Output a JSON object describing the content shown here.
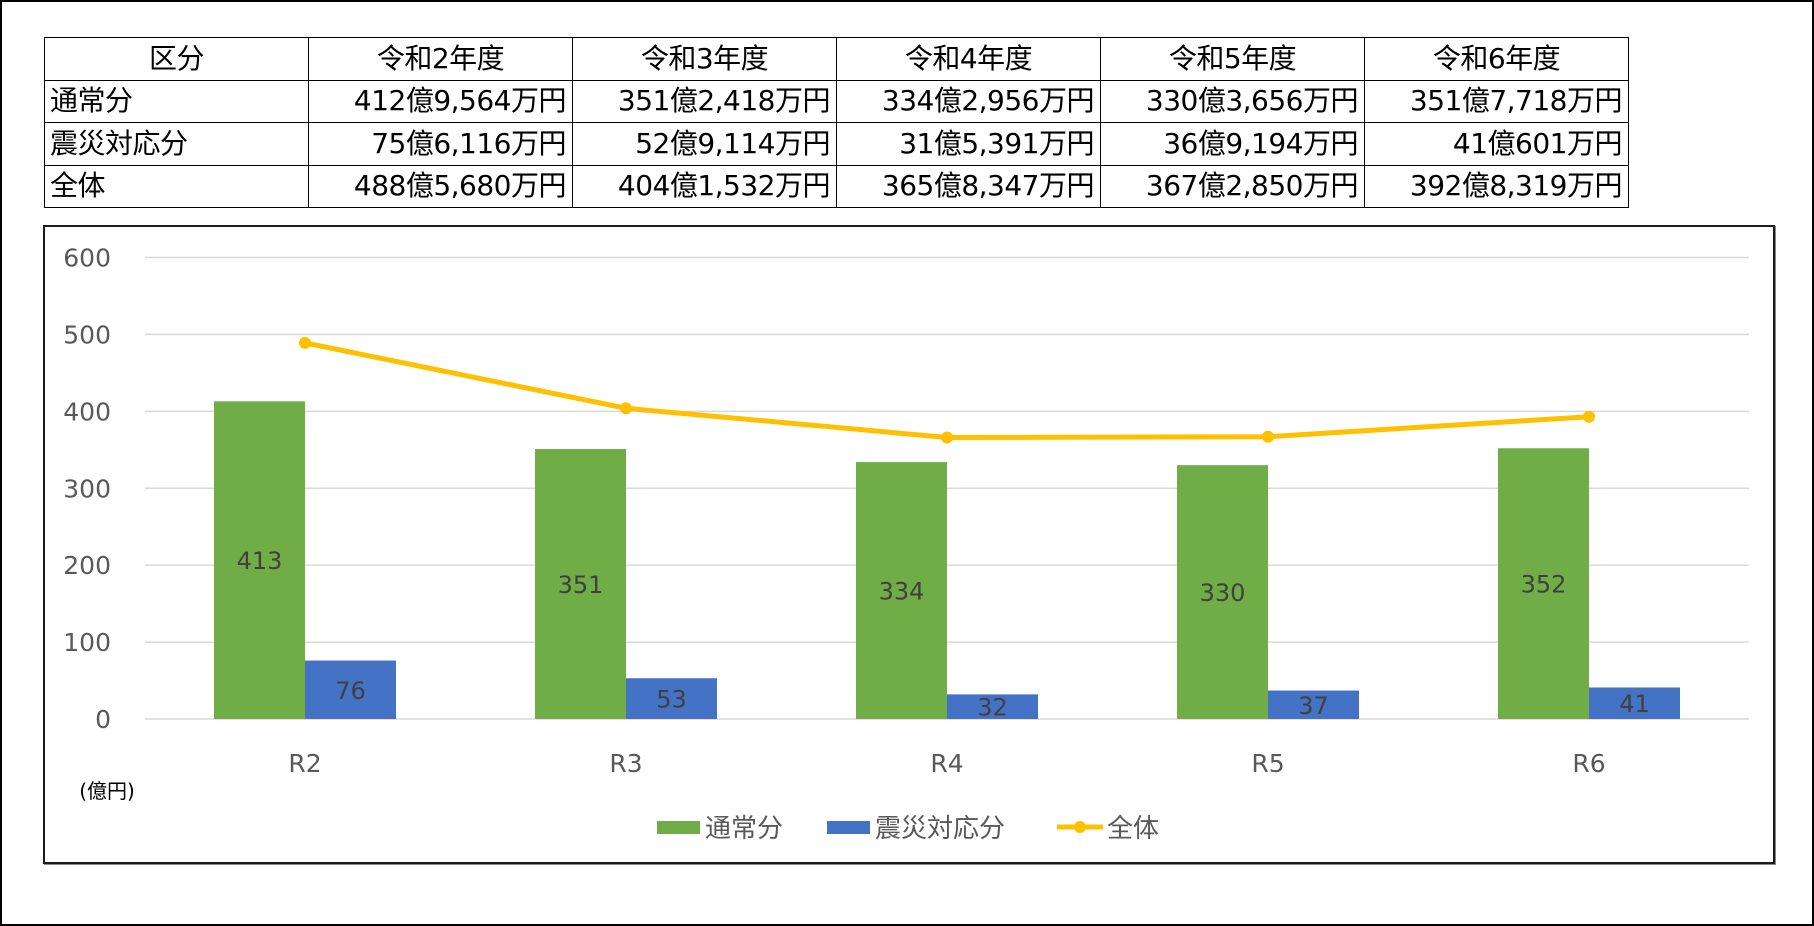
{
  "table": {
    "header": [
      "区分",
      "令和2年度",
      "令和3年度",
      "令和4年度",
      "令和5年度",
      "令和6年度"
    ],
    "rows": [
      {
        "label": "通常分",
        "values": [
          "412億9,564万円",
          "351億2,418万円",
          "334億2,956万円",
          "330億3,656万円",
          "351億7,718万円"
        ]
      },
      {
        "label": "震災対応分",
        "values": [
          "75億6,116万円",
          "52億9,114万円",
          "31億5,391万円",
          "36億9,194万円",
          "41億601万円"
        ]
      },
      {
        "label": "全体",
        "values": [
          "488億5,680万円",
          "404億1,532万円",
          "365億8,347万円",
          "367億2,850万円",
          "392億8,319万円"
        ]
      }
    ]
  },
  "chart_data": {
    "type": "bar",
    "title": "",
    "xlabel": "",
    "ylabel": "(億円)",
    "unit_label": "(億円)",
    "categories": [
      "R2",
      "R3",
      "R4",
      "R5",
      "R6"
    ],
    "series": [
      {
        "name": "通常分",
        "type": "bar",
        "color": "#70AD47",
        "values": [
          413,
          351,
          334,
          330,
          352
        ]
      },
      {
        "name": "震災対応分",
        "type": "bar",
        "color": "#4472C4",
        "values": [
          76,
          53,
          32,
          37,
          41
        ]
      },
      {
        "name": "全体",
        "type": "line",
        "color": "#FFC000",
        "values": [
          489,
          404,
          366,
          367,
          393
        ]
      }
    ],
    "ylim": [
      0,
      600
    ],
    "yticks": [
      0,
      100,
      200,
      300,
      400,
      500,
      600
    ],
    "grid": true,
    "legend_position": "bottom",
    "data_labels_on": [
      "通常分",
      "震災対応分"
    ]
  }
}
